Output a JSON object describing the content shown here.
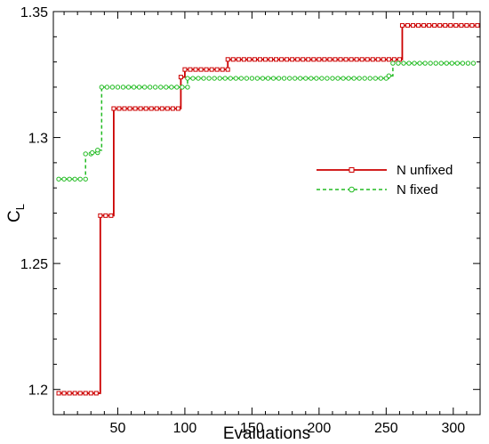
{
  "chart_data": {
    "type": "line",
    "title": "",
    "xlabel": "Evaluations",
    "ylabel_main": "C",
    "ylabel_sub": "L",
    "xlim": [
      2,
      320
    ],
    "ylim": [
      1.19,
      1.35
    ],
    "x_ticks": [
      50,
      100,
      150,
      200,
      250,
      300
    ],
    "y_ticks": [
      1.2,
      1.25,
      1.3,
      1.35
    ],
    "y_tick_labels": [
      "1.2",
      "1.25",
      "1.3",
      "1.35"
    ],
    "grid": false,
    "legend_position": "right-middle",
    "series": [
      {
        "name": "N unfixed",
        "color": "#cc0000",
        "line_style": "solid",
        "marker": "square",
        "points": [
          [
            6,
            1.1985
          ],
          [
            37,
            1.1985
          ],
          [
            37,
            1.269
          ],
          [
            47,
            1.269
          ],
          [
            47,
            1.3115
          ],
          [
            97,
            1.3115
          ],
          [
            97,
            1.324
          ],
          [
            100,
            1.324
          ],
          [
            100,
            1.327
          ],
          [
            132,
            1.327
          ],
          [
            132,
            1.331
          ],
          [
            262,
            1.331
          ],
          [
            262,
            1.3445
          ],
          [
            318,
            1.3445
          ]
        ]
      },
      {
        "name": "N fixed",
        "color": "#22bb22",
        "line_style": "dashed",
        "marker": "circle",
        "points": [
          [
            6,
            1.2835
          ],
          [
            26,
            1.2835
          ],
          [
            26,
            1.2935
          ],
          [
            31,
            1.2935
          ],
          [
            31,
            1.294
          ],
          [
            35,
            1.294
          ],
          [
            35,
            1.295
          ],
          [
            38,
            1.295
          ],
          [
            38,
            1.32
          ],
          [
            102,
            1.32
          ],
          [
            102,
            1.3235
          ],
          [
            252,
            1.3235
          ],
          [
            252,
            1.3245
          ],
          [
            255,
            1.3245
          ],
          [
            255,
            1.3295
          ],
          [
            318,
            1.3295
          ]
        ]
      }
    ]
  }
}
